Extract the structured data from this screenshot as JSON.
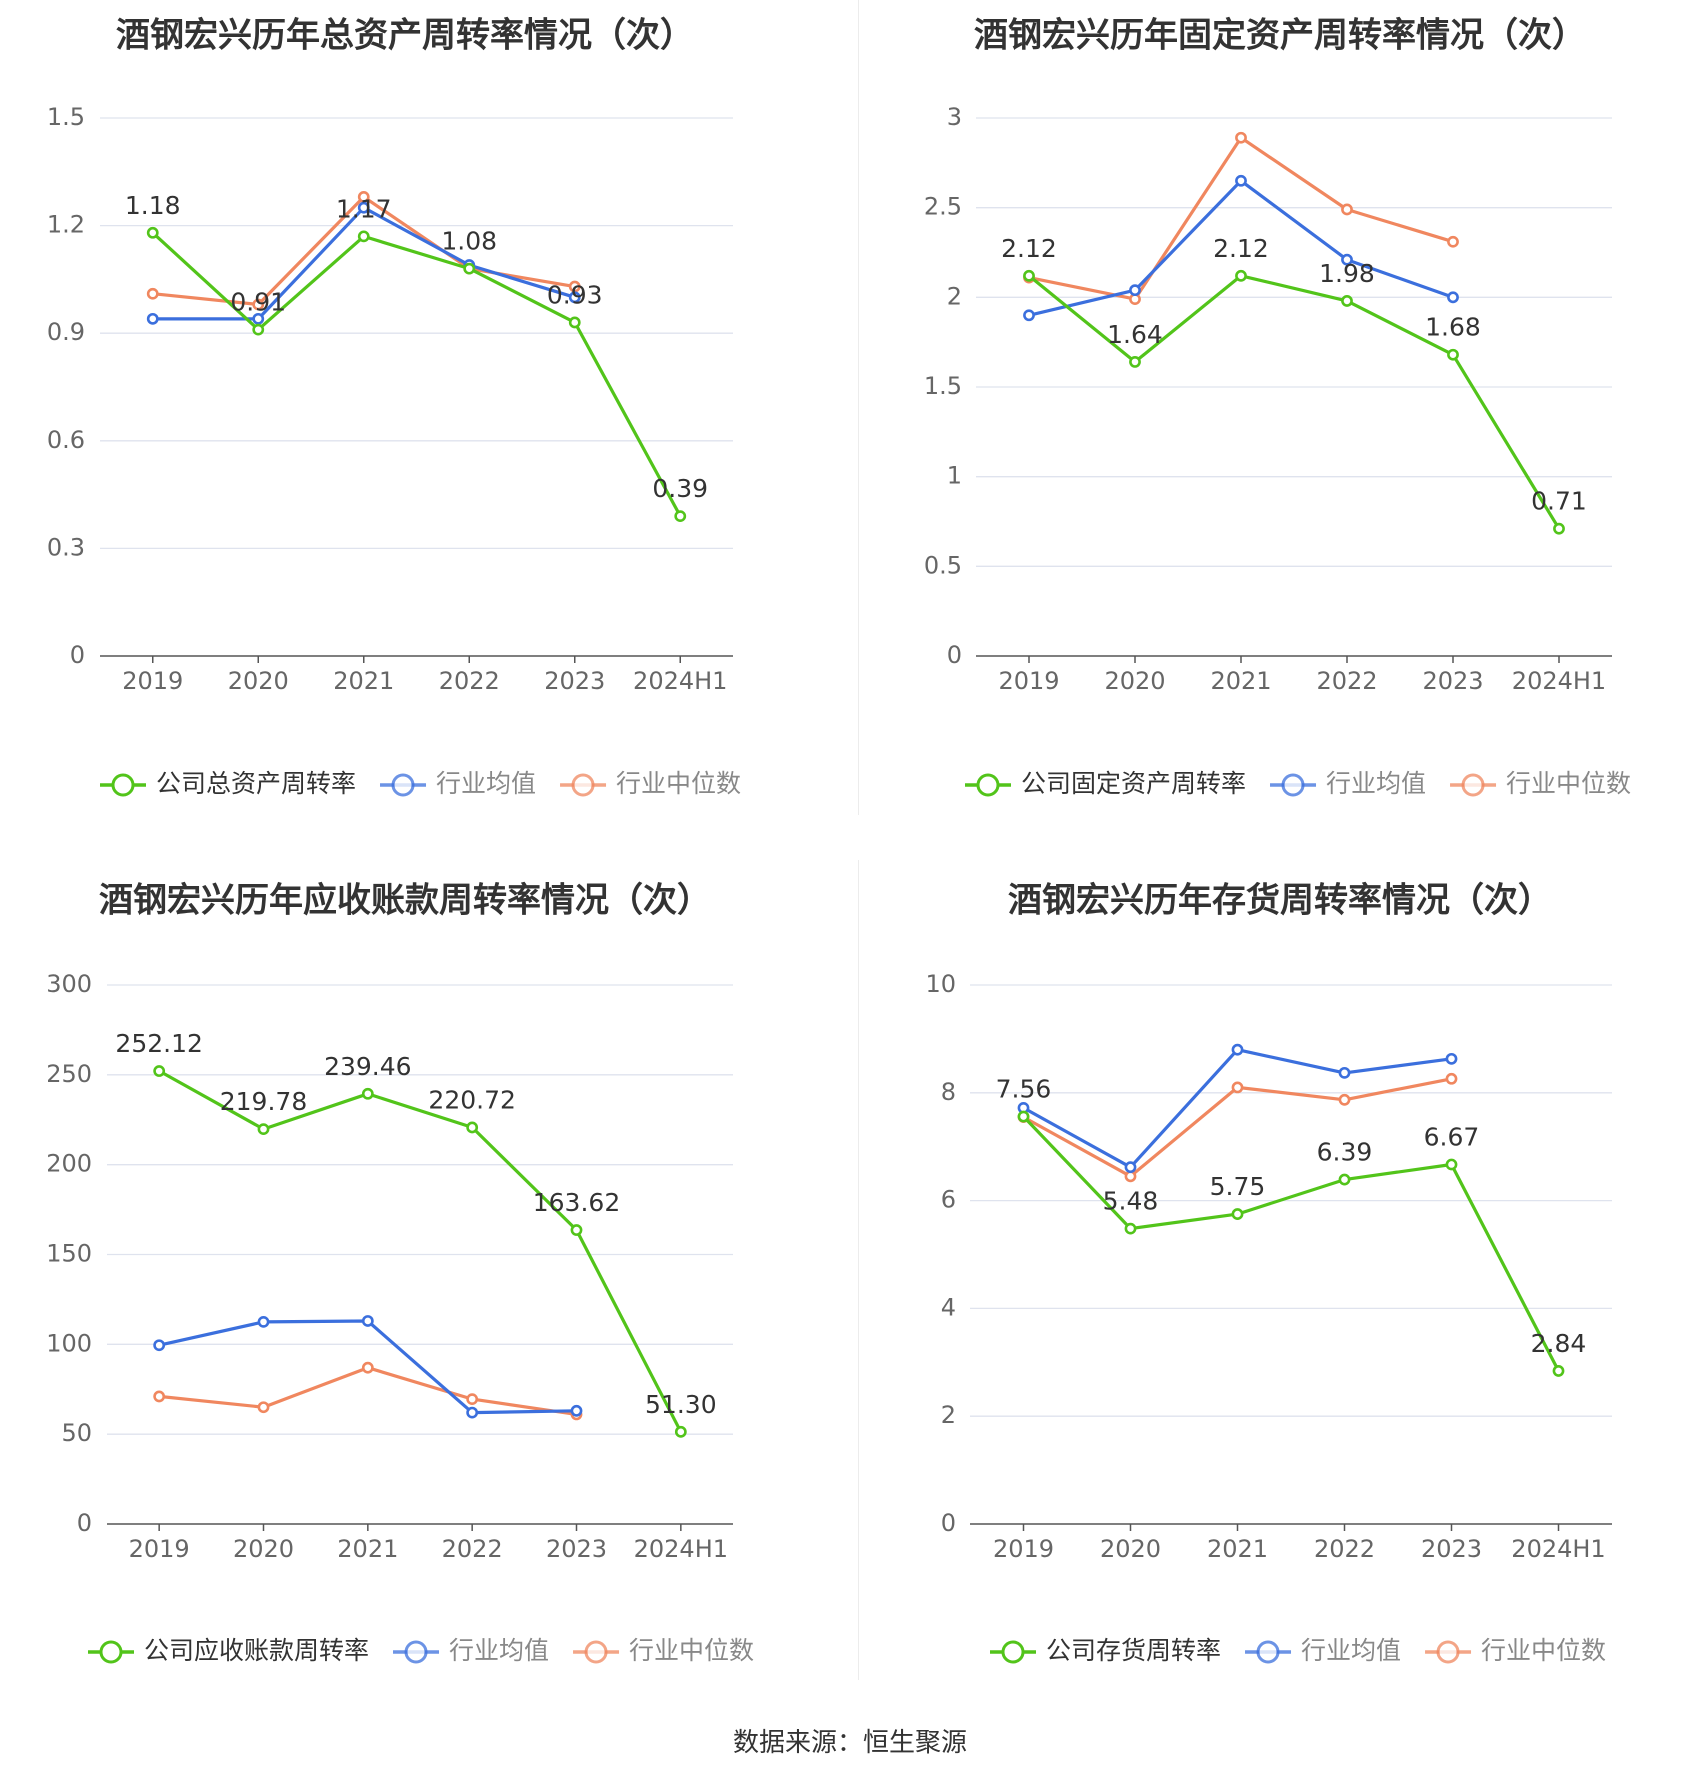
{
  "source_text": "数据来源：恒生聚源",
  "colors": {
    "company": "#52c41a",
    "avg": "#3b6fdd",
    "median": "#f0875f",
    "grid": "#dfe3ee",
    "axis": "#666666",
    "label": "#333333",
    "legend_inactive": "#888888"
  },
  "chart_data": [
    {
      "type": "line",
      "title": "酒钢宏兴历年总资产周转率情况（次）",
      "categories": [
        "2019",
        "2020",
        "2021",
        "2022",
        "2023",
        "2024H1"
      ],
      "ylim": [
        0,
        1.5
      ],
      "yticks": [
        "0",
        "0.3",
        "0.6",
        "0.9",
        "1.2",
        "1.5"
      ],
      "grid": true,
      "legend_position": "bottom",
      "series": [
        {
          "name": "公司总资产周转率",
          "role": "company",
          "values": [
            1.18,
            0.91,
            1.17,
            1.08,
            0.93,
            0.39
          ],
          "labels": [
            "1.18",
            "0.91",
            "1.17",
            "1.08",
            "0.93",
            "0.39"
          ]
        },
        {
          "name": "行业均值",
          "role": "avg",
          "values": [
            0.94,
            0.94,
            1.25,
            1.09,
            1.0,
            null
          ]
        },
        {
          "name": "行业中位数",
          "role": "median",
          "values": [
            1.01,
            0.98,
            1.28,
            1.08,
            1.03,
            null
          ]
        }
      ]
    },
    {
      "type": "line",
      "title": "酒钢宏兴历年固定资产周转率情况（次）",
      "categories": [
        "2019",
        "2020",
        "2021",
        "2022",
        "2023",
        "2024H1"
      ],
      "ylim": [
        0,
        3
      ],
      "yticks": [
        "0",
        "0.5",
        "1",
        "1.5",
        "2",
        "2.5",
        "3"
      ],
      "grid": true,
      "legend_position": "bottom",
      "series": [
        {
          "name": "公司固定资产周转率",
          "role": "company",
          "values": [
            2.12,
            1.64,
            2.12,
            1.98,
            1.68,
            0.71
          ],
          "labels": [
            "2.12",
            "1.64",
            "2.12",
            "1.98",
            "1.68",
            "0.71"
          ]
        },
        {
          "name": "行业均值",
          "role": "avg",
          "values": [
            1.9,
            2.04,
            2.65,
            2.21,
            2.0,
            null
          ]
        },
        {
          "name": "行业中位数",
          "role": "median",
          "values": [
            2.11,
            1.99,
            2.89,
            2.49,
            2.31,
            null
          ]
        }
      ]
    },
    {
      "type": "line",
      "title": "酒钢宏兴历年应收账款周转率情况（次）",
      "categories": [
        "2019",
        "2020",
        "2021",
        "2022",
        "2023",
        "2024H1"
      ],
      "ylim": [
        0,
        300
      ],
      "yticks": [
        "0",
        "50",
        "100",
        "150",
        "200",
        "250",
        "300"
      ],
      "grid": true,
      "legend_position": "bottom",
      "series": [
        {
          "name": "公司应收账款周转率",
          "role": "company",
          "values": [
            252.12,
            219.78,
            239.46,
            220.72,
            163.62,
            51.3
          ],
          "labels": [
            "252.12",
            "219.78",
            "239.46",
            "220.72",
            "163.62",
            "51.30"
          ]
        },
        {
          "name": "行业均值",
          "role": "avg",
          "values": [
            99.5,
            112.5,
            113.0,
            62.0,
            63.0,
            null
          ]
        },
        {
          "name": "行业中位数",
          "role": "median",
          "values": [
            71.0,
            65.0,
            87.0,
            69.5,
            61.0,
            null
          ]
        }
      ]
    },
    {
      "type": "line",
      "title": "酒钢宏兴历年存货周转率情况（次）",
      "categories": [
        "2019",
        "2020",
        "2021",
        "2022",
        "2023",
        "2024H1"
      ],
      "ylim": [
        0,
        10
      ],
      "yticks": [
        "0",
        "2",
        "4",
        "6",
        "8",
        "10"
      ],
      "grid": true,
      "legend_position": "bottom",
      "series": [
        {
          "name": "公司存货周转率",
          "role": "company",
          "values": [
            7.56,
            5.48,
            5.75,
            6.39,
            6.67,
            2.84
          ],
          "labels": [
            "7.56",
            "5.48",
            "5.75",
            "6.39",
            "6.67",
            "2.84"
          ]
        },
        {
          "name": "行业均值",
          "role": "avg",
          "values": [
            7.72,
            6.62,
            8.8,
            8.37,
            8.63,
            null
          ]
        },
        {
          "name": "行业中位数",
          "role": "median",
          "values": [
            7.55,
            6.45,
            8.1,
            7.87,
            8.26,
            null
          ]
        }
      ]
    }
  ]
}
